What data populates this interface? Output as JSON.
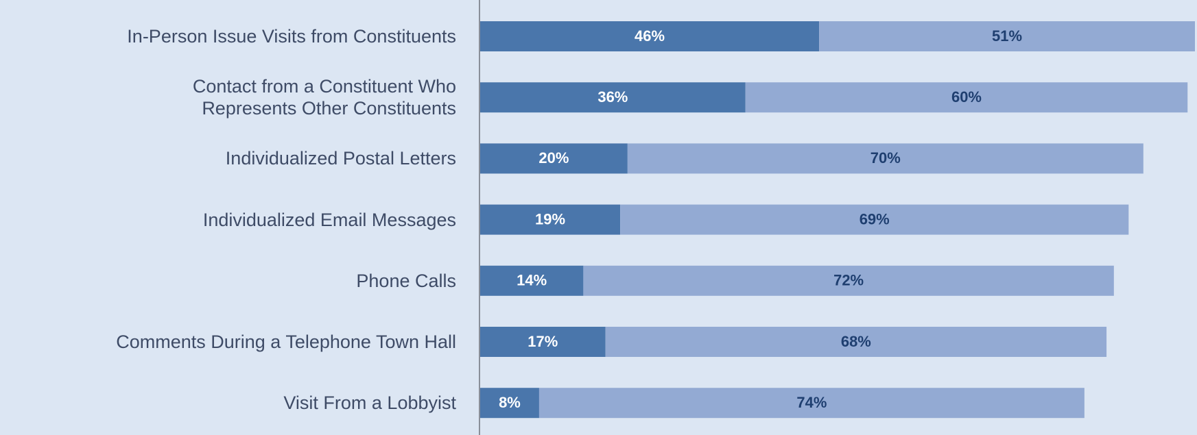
{
  "chart_data": {
    "type": "stacked-bar-horizontal",
    "categories": [
      "In-Person Issue Visits from Constituents",
      "Contact from a Constituent Who\nRepresents Other Constituents",
      "Individualized Postal Letters",
      "Individualized Email Messages",
      "Phone Calls",
      "Comments During a Telephone Town Hall",
      "Visit From a Lobbyist"
    ],
    "series": [
      {
        "color": "#4a76ab",
        "label_color": "#ffffff",
        "values": [
          46,
          36,
          20,
          19,
          14,
          17,
          8
        ],
        "value_labels": [
          "46%",
          "36%",
          "20%",
          "19%",
          "14%",
          "17%",
          "8%"
        ]
      },
      {
        "color": "#93aad3",
        "label_color": "#1f3f70",
        "values": [
          51,
          60,
          70,
          69,
          72,
          68,
          74
        ],
        "value_labels": [
          "51%",
          "60%",
          "70%",
          "69%",
          "72%",
          "68%",
          "74%"
        ]
      }
    ]
  }
}
